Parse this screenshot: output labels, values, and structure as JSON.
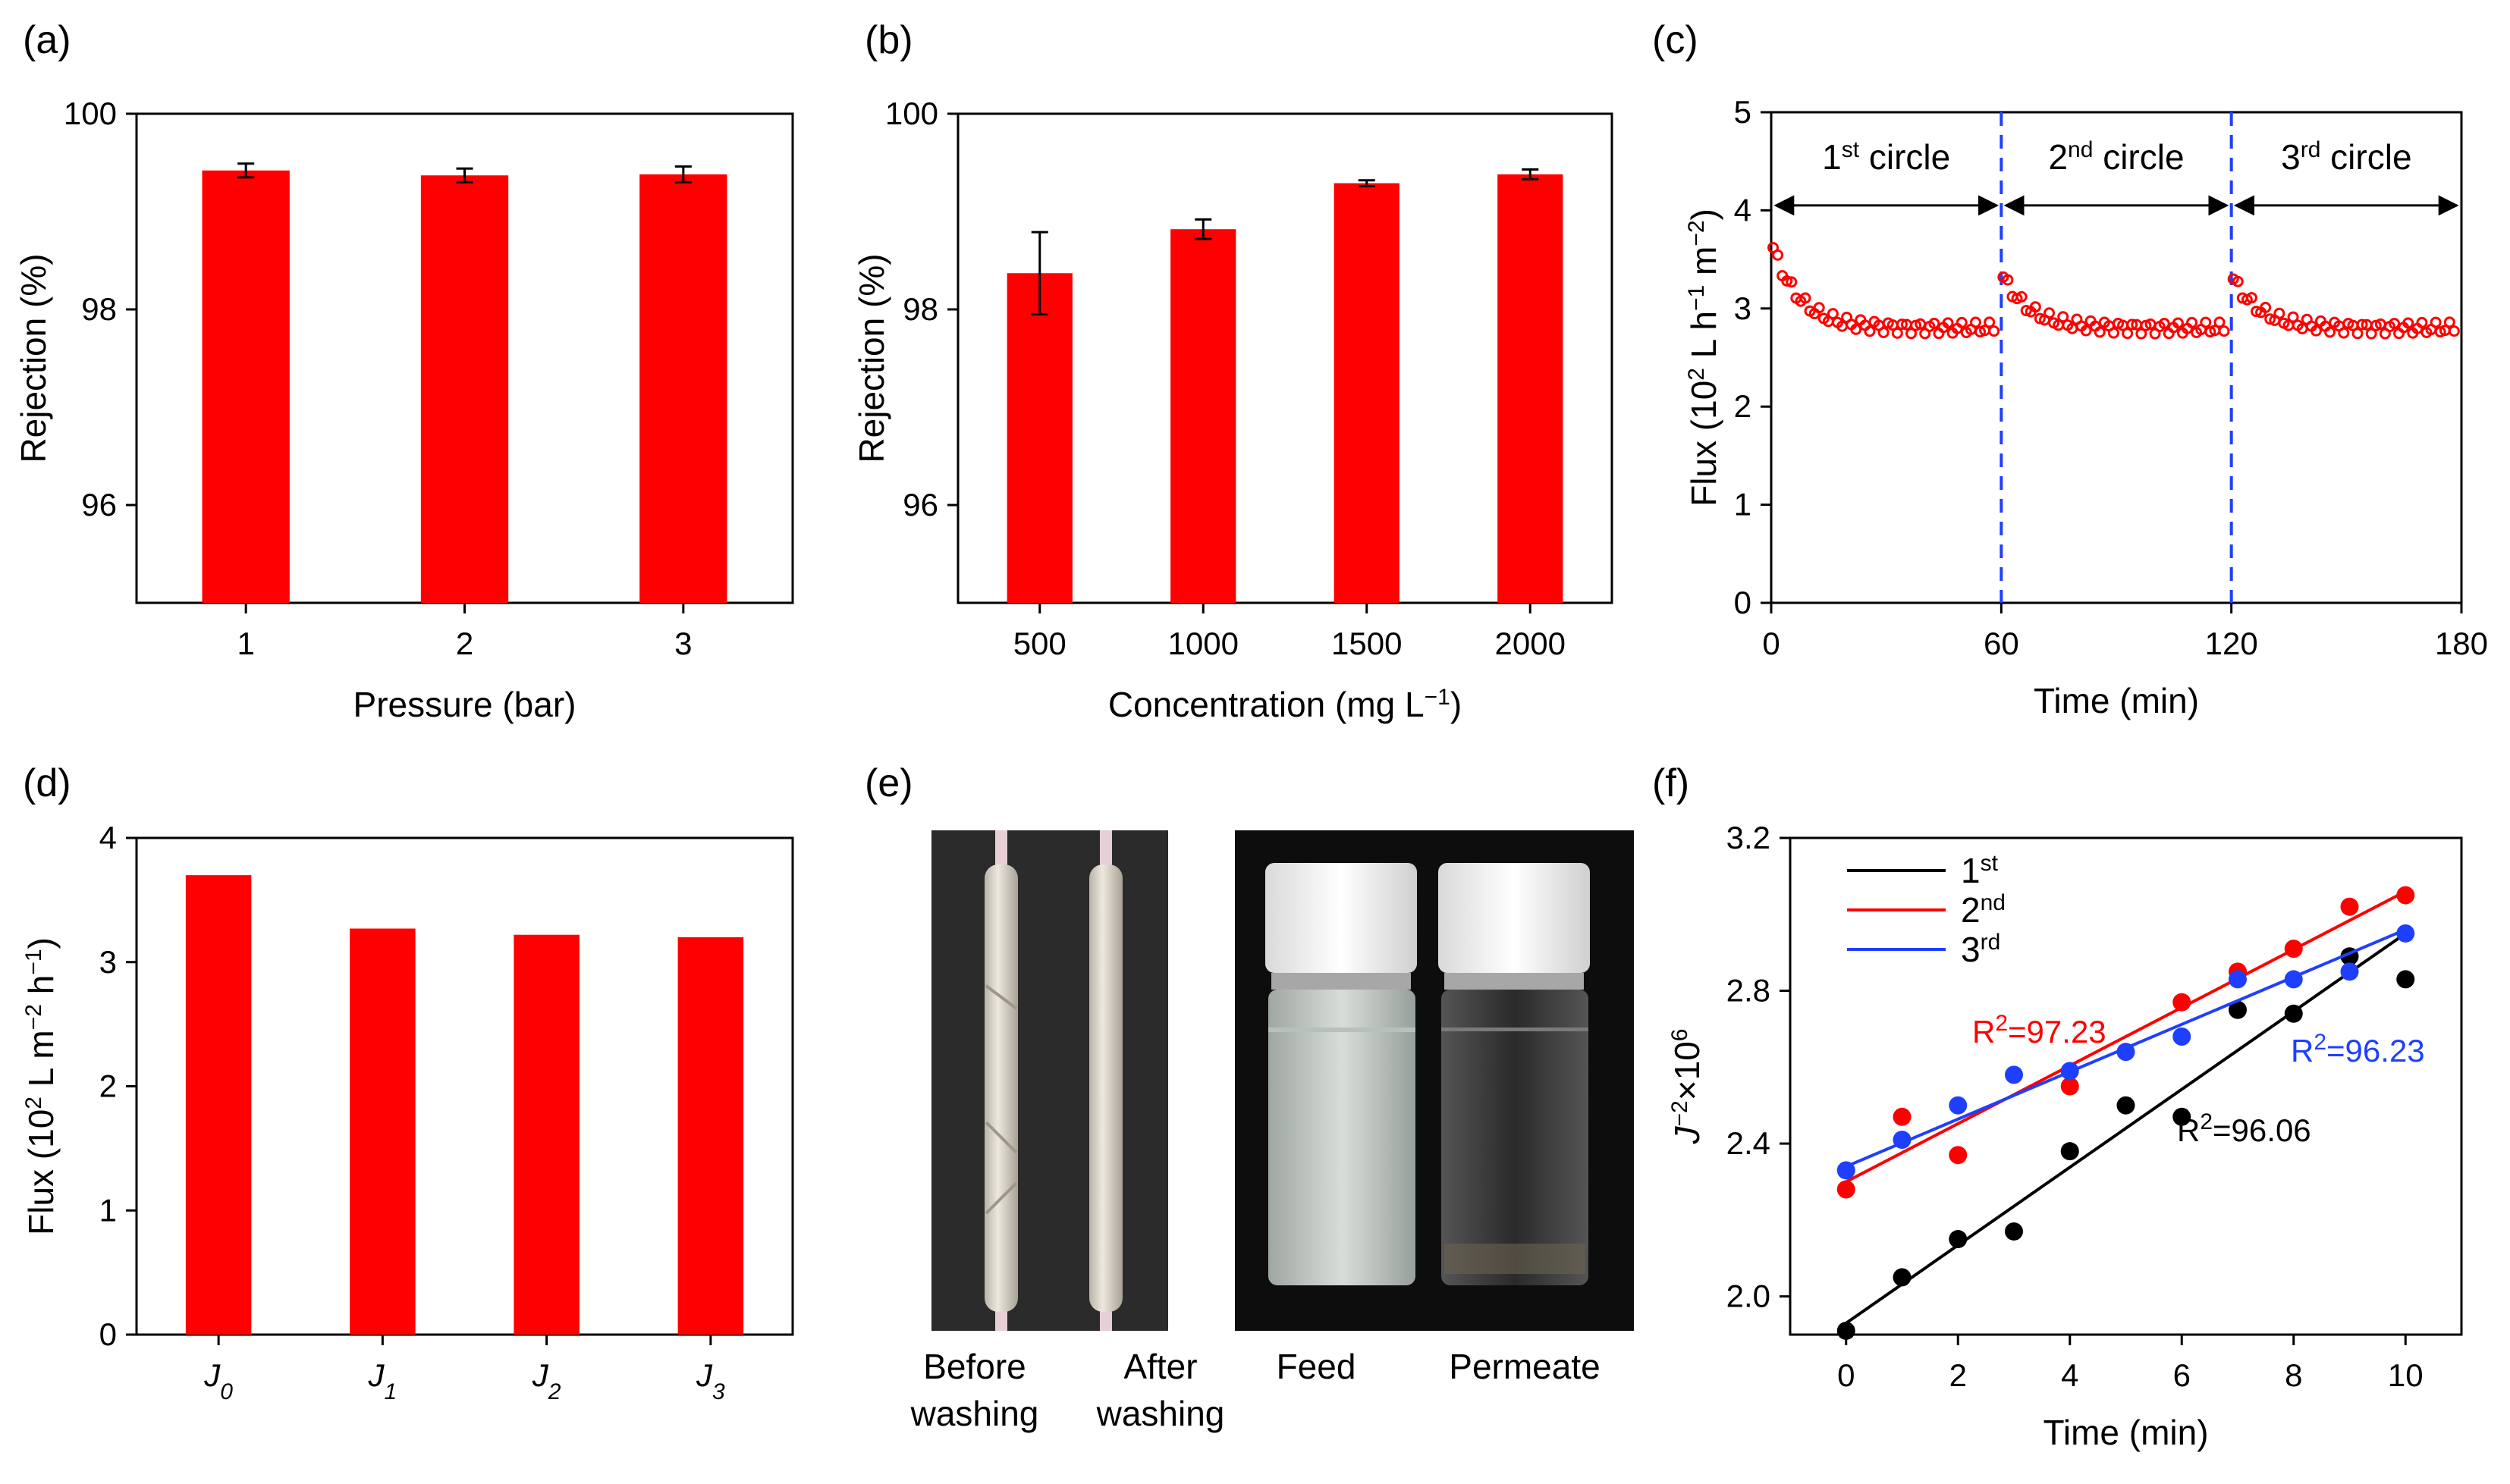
{
  "chart_data": [
    {
      "panel": "(a)",
      "type": "bar",
      "categories": [
        "1",
        "2",
        "3"
      ],
      "values": [
        99.42,
        99.37,
        99.38
      ],
      "errors": [
        0.07,
        0.07,
        0.08
      ],
      "xlabel": "Pressure (bar)",
      "ylabel": "Rejection (%)",
      "ylim": [
        95,
        100
      ],
      "yticks": [
        "96",
        "98",
        "100"
      ],
      "bar_color": "#ff0000"
    },
    {
      "panel": "(b)",
      "type": "bar",
      "categories": [
        "500",
        "1000",
        "1500",
        "2000"
      ],
      "values": [
        98.37,
        98.82,
        99.29,
        99.38
      ],
      "errors": [
        0.42,
        0.1,
        0.03,
        0.05
      ],
      "xlabel_main": "Concentration (mg L",
      "xlabel_sup": "−1",
      "xlabel_close": ")",
      "ylabel": "Rejection (%)",
      "ylim": [
        95,
        100
      ],
      "yticks": [
        "96",
        "98",
        "100"
      ],
      "bar_color": "#ff0000"
    },
    {
      "panel": "(c)",
      "type": "scatter",
      "xlabel": "Time  (min)",
      "ylabel_parts": [
        "Flux (10",
        "2",
        " L h",
        "−1",
        " m",
        "−2",
        ")"
      ],
      "xlim": [
        0,
        180
      ],
      "ylim": [
        0,
        5
      ],
      "xticks": [
        "0",
        "60",
        "120",
        "180"
      ],
      "yticks": [
        "0",
        "1",
        "2",
        "3",
        "4",
        "5"
      ],
      "cycles": [
        {
          "label": "1",
          "sup": "st",
          "rest": " circle",
          "start_flux": 3.62
        },
        {
          "label": "2",
          "sup": "nd",
          "rest": " circle",
          "start_flux": 3.32
        },
        {
          "label": "3",
          "sup": "rd",
          "rest": " circle",
          "start_flux": 3.3
        }
      ],
      "plateau_flux": 2.8,
      "divider_x": [
        60,
        120
      ],
      "arrow_y": 4.05,
      "marker_color": "#ff0000",
      "divider_color": "#1f3fff"
    },
    {
      "panel": "(d)",
      "type": "bar",
      "categories": [
        {
          "main": "J",
          "sub": "0"
        },
        {
          "main": "J",
          "sub": "1"
        },
        {
          "main": "J",
          "sub": "2"
        },
        {
          "main": "J",
          "sub": "3"
        }
      ],
      "values": [
        3.7,
        3.27,
        3.22,
        3.2
      ],
      "ylabel_parts": [
        "Flux (10",
        "2",
        " L m",
        "−2",
        " h",
        "−1",
        ")"
      ],
      "ylim": [
        0,
        4
      ],
      "yticks": [
        "0",
        "1",
        "2",
        "3",
        "4"
      ],
      "bar_color": "#ff0000"
    },
    {
      "panel": "(f)",
      "type": "scatter",
      "xlabel": "Time (min)",
      "ylabel_parts": [
        "J",
        "−2",
        "×10",
        "6"
      ],
      "xlim": [
        -1,
        11
      ],
      "ylim": [
        1.9,
        3.2
      ],
      "xticks": [
        "0",
        "2",
        "4",
        "6",
        "8",
        "10"
      ],
      "yticks": [
        "2.0",
        "2.4",
        "2.8",
        "3.2"
      ],
      "series": [
        {
          "name": "1",
          "sup": "st",
          "color": "#000000",
          "x": [
            0,
            1,
            2,
            3,
            4,
            5,
            6,
            7,
            8,
            9,
            10
          ],
          "y": [
            1.91,
            2.05,
            2.15,
            2.17,
            2.38,
            2.5,
            2.47,
            2.75,
            2.74,
            2.89,
            2.83
          ],
          "fit": [
            [
              0,
              1.93
            ],
            [
              10,
              2.95
            ]
          ],
          "r2_label": "R",
          "r2_sup": "2",
          "r2_value": "=96.06"
        },
        {
          "name": "2",
          "sup": "nd",
          "color": "#ff0000",
          "x": [
            0,
            1,
            2,
            4,
            6,
            7,
            8,
            9,
            10
          ],
          "y": [
            2.28,
            2.47,
            2.37,
            2.55,
            2.77,
            2.85,
            2.91,
            3.02,
            3.05
          ],
          "fit": [
            [
              0,
              2.3
            ],
            [
              10,
              3.06
            ]
          ],
          "r2_label": "R",
          "r2_sup": "2",
          "r2_value": "=97.23"
        },
        {
          "name": "3",
          "sup": "rd",
          "color": "#1f3fff",
          "x": [
            0,
            1,
            2,
            3,
            4,
            5,
            6,
            7,
            8,
            9,
            10
          ],
          "y": [
            2.33,
            2.41,
            2.5,
            2.58,
            2.59,
            2.64,
            2.68,
            2.83,
            2.83,
            2.85,
            2.95
          ],
          "fit": [
            [
              0,
              2.34
            ],
            [
              10,
              2.96
            ]
          ],
          "r2_label": "R",
          "r2_sup": "2",
          "r2_value": "=96.23"
        }
      ]
    }
  ],
  "panel_e": {
    "label": "(e)",
    "captions": [
      {
        "line1": "Before",
        "line2": "washing"
      },
      {
        "line1": "After",
        "line2": "washing"
      },
      {
        "line1": "Feed",
        "line2": ""
      },
      {
        "line1": "Permeate",
        "line2": ""
      }
    ]
  }
}
